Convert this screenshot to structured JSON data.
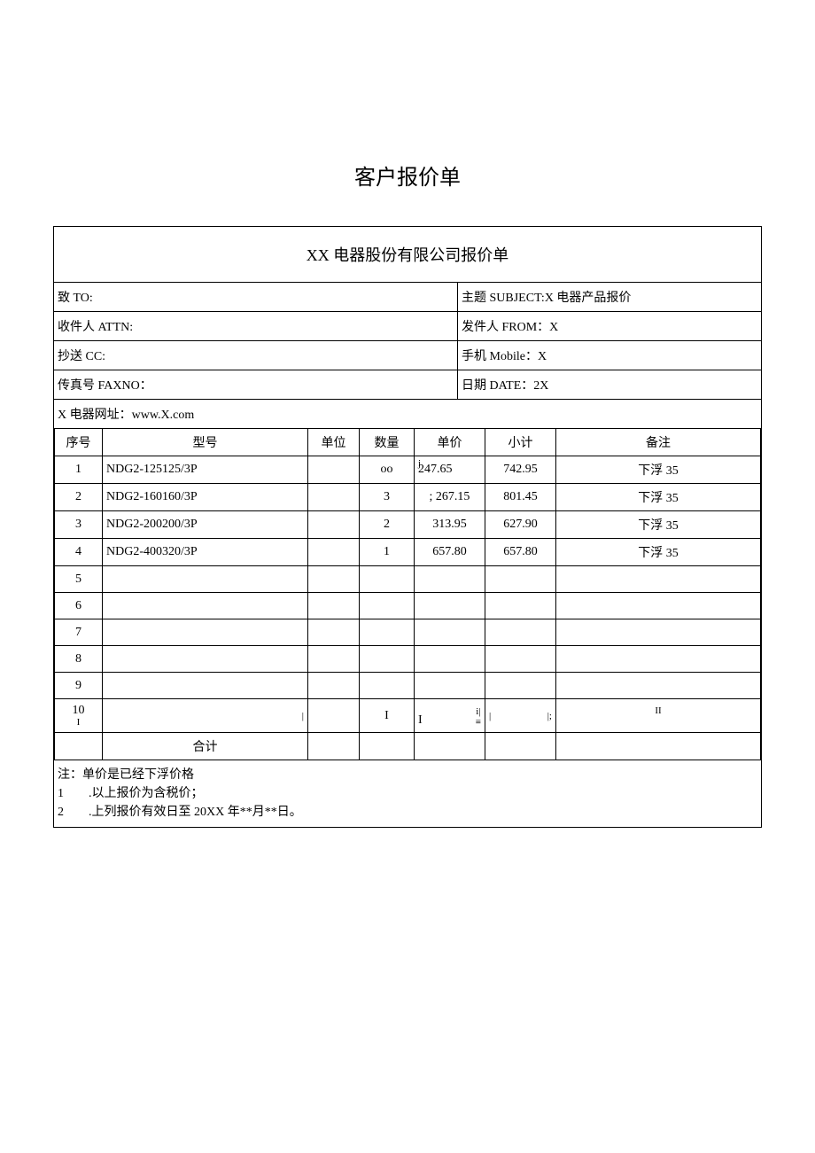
{
  "page_title": "客户报价单",
  "form_title": "XX 电器股份有限公司报价单",
  "header": {
    "to_label": "致 TO:",
    "subject_label": "主题 SUBJECT:X 电器产品报价",
    "attn_label": "收件人 ATTN:",
    "from_label": "发件人 FROM：X",
    "cc_label": "抄送 CC:",
    "mobile_label": "手机 Mobile：X",
    "fax_label": "传真号 FAXNO：",
    "date_label": "日期 DATE：2X",
    "website_label": "X 电器网址：www.X.com"
  },
  "table": {
    "headers": {
      "seq": "序号",
      "model": "型号",
      "unit": "单位",
      "qty": "数量",
      "price": "单价",
      "subtotal": "小计",
      "note": "备注"
    },
    "rows": [
      {
        "seq": "1",
        "model": "NDG2-125125/3P",
        "unit": "",
        "qty": "oo",
        "price_mark": "j",
        "price": "247.65",
        "subtotal": "742.95",
        "note": "下浮 35"
      },
      {
        "seq": "2",
        "model": "NDG2-160160/3P",
        "unit": "",
        "qty": "3",
        "price_mark": ";",
        "price": "267.15",
        "subtotal": "801.45",
        "note": "下浮 35"
      },
      {
        "seq": "3",
        "model": "NDG2-200200/3P",
        "unit": "",
        "qty": "2",
        "price_mark": "",
        "price": "313.95",
        "subtotal": "627.90",
        "note": "下浮 35"
      },
      {
        "seq": "4",
        "model": "NDG2-400320/3P",
        "unit": "",
        "qty": "1",
        "price_mark": "",
        "price": "657.80",
        "subtotal": "657.80",
        "note": "下浮 35"
      },
      {
        "seq": "5",
        "model": "",
        "unit": "",
        "qty": "",
        "price_mark": "",
        "price": "",
        "subtotal": "",
        "note": ""
      },
      {
        "seq": "6",
        "model": "",
        "unit": "",
        "qty": "",
        "price_mark": "",
        "price": "",
        "subtotal": "",
        "note": ""
      },
      {
        "seq": "7",
        "model": "",
        "unit": "",
        "qty": "",
        "price_mark": "",
        "price": "",
        "subtotal": "",
        "note": ""
      },
      {
        "seq": "8",
        "model": "",
        "unit": "",
        "qty": "",
        "price_mark": "",
        "price": "",
        "subtotal": "",
        "note": ""
      },
      {
        "seq": "9",
        "model": "",
        "unit": "",
        "qty": "",
        "price_mark": "",
        "price": "",
        "subtotal": "",
        "note": ""
      }
    ],
    "row10": {
      "seq_top": "10",
      "seq_bottom": "I",
      "model_mark": "|",
      "qty": "I",
      "price_left": "I",
      "price_right": "i|",
      "subtotal_left": "|",
      "subtotal_right": "|;",
      "note": "II"
    },
    "total_label": "合计"
  },
  "notes": {
    "line1": "注：单价是已经下浮价格",
    "line2": "1  .以上报价为含税价；",
    "line3": "2  .上列报价有效日至 20XX 年**月**日。"
  },
  "colors": {
    "background": "#ffffff",
    "border": "#000000",
    "text": "#000000"
  }
}
